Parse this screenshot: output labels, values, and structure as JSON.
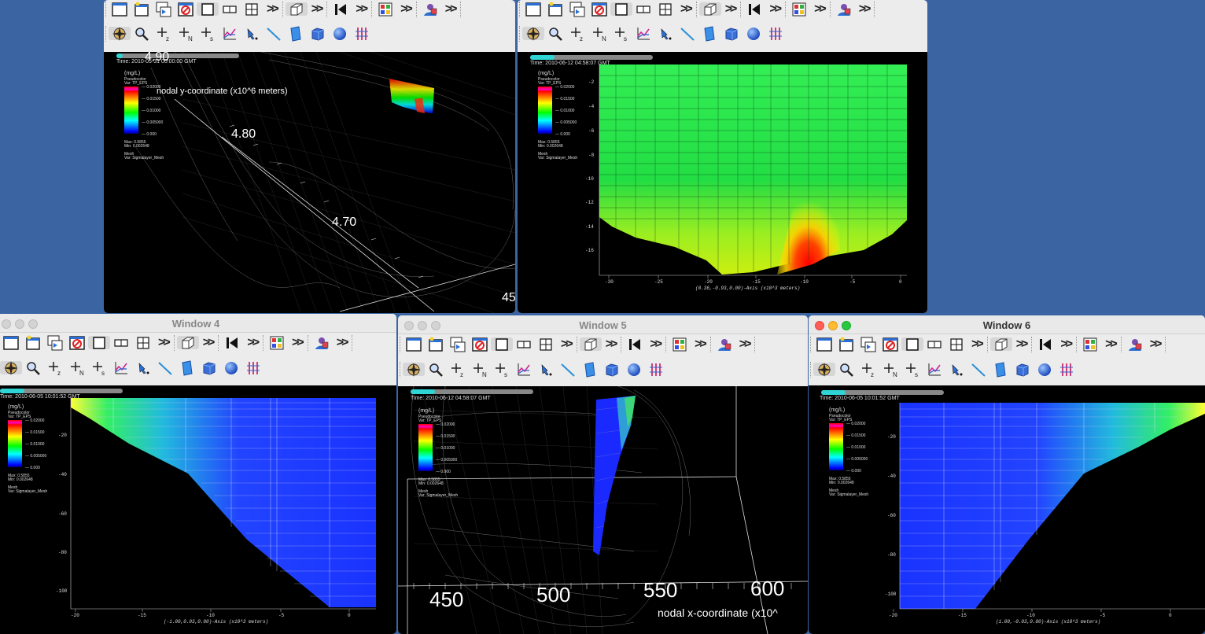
{
  "windows": [
    {
      "id": "w1",
      "title": "",
      "active": false
    },
    {
      "id": "w2",
      "title": "",
      "active": false
    },
    {
      "id": "w4",
      "title": "Window 4",
      "active": false
    },
    {
      "id": "w5",
      "title": "Window 5",
      "active": false
    },
    {
      "id": "w6",
      "title": "Window 6",
      "active": true
    }
  ],
  "toolbar_icons_row1": [
    "new-window-icon",
    "pick-icon",
    "copy-icon",
    "clear-icon",
    "layout-1x1-icon",
    "layout-1x2-icon",
    "layout-2x2-icon",
    "more-icon",
    "3d-view-icon",
    "more-icon",
    "animation-icon",
    "more-icon",
    "lighting-icon",
    "more-icon",
    "lock-icon",
    "more-icon"
  ],
  "toolbar_icons_row2": [
    "navigate-icon",
    "zoom-icon",
    "zone-pick-icon",
    "node-pick-icon",
    "spreadsheet-pick-icon",
    "curve-pick-icon",
    "point-tool-icon",
    "line-tool-icon",
    "plane-tool-icon",
    "box-tool-icon",
    "sphere-tool-icon",
    "axis-restrict-icon"
  ],
  "legend": {
    "unit": "(mg/L)",
    "plot_type": "Pseudocolor",
    "var": "Var: TP_EPS",
    "ticks": [
      "0.02000",
      "0.01500",
      "0.01000",
      "0.005000",
      "0.000"
    ],
    "max": "Max:  0.5855",
    "min": "Min:  0.002648",
    "mesh_label": "Mesh",
    "mesh_var": "Var: Sigmalayer_Mesh"
  },
  "w1": {
    "time": "Time: 2010-05-31 00:00:00 GMT",
    "y_labels": [
      "4.90",
      "4.80",
      "4.70",
      "45"
    ],
    "axis_title": "nodal y-coordinate (x10^6 meters)",
    "slider_progress": 0.05
  },
  "w2": {
    "time": "Time: 2010-06-12 04:58:07 GMT",
    "y_ticks": [
      "-2",
      "-4",
      "-6",
      "-8",
      "-10",
      "-12",
      "-14",
      "-16"
    ],
    "x_ticks": [
      "-30",
      "-25",
      "-20",
      "-15",
      "-10",
      "-5",
      "0"
    ],
    "axis_title": "(0.36,-0.93,0.00)-Axis (x10^3 meters)",
    "slider_progress": 0.2
  },
  "w4": {
    "time": "Time: 2010-06-05 10:01:52 GMT",
    "y_ticks": [
      "-20",
      "-40",
      "-60",
      "-80",
      "-100"
    ],
    "x_ticks": [
      "-20",
      "-15",
      "-10",
      "-5",
      "0"
    ],
    "axis_title": "(-1.00,0.03,0.00)-Axis (x10^3 meters)",
    "slider_progress": 0.2
  },
  "w5": {
    "time": "Time: 2010-06-12 04:58:07 GMT",
    "x_labels": [
      "450",
      "500",
      "550",
      "600"
    ],
    "axis_title": "nodal x-coordinate (x10^",
    "slider_progress": 0.2
  },
  "w6": {
    "time": "Time: 2010-06-05 10:01:52 GMT",
    "y_ticks": [
      "-20",
      "-40",
      "-60",
      "-80",
      "-100"
    ],
    "x_ticks": [
      "-20",
      "-15",
      "-10",
      "-5",
      "0"
    ],
    "axis_title": "(1.00,-0.03,0.00)-Axis (x10^3 meters)",
    "slider_progress": 0.2
  },
  "colors": {
    "desktop": "#3b64a3",
    "slider_fill": "#2fd5d5"
  }
}
